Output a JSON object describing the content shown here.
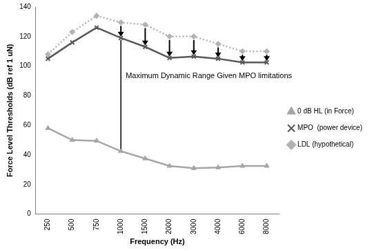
{
  "chart_data": {
    "type": "line",
    "categories": [
      "250",
      "500",
      "750",
      "1000",
      "1500",
      "2000",
      "3000",
      "4000",
      "6000",
      "8000"
    ],
    "series": [
      {
        "name": "0 dB HL (in Force)",
        "color": "#a6a6a6",
        "marker": "triangle",
        "line_style": "solid",
        "values": [
          58,
          50,
          49.5,
          42.5,
          37.5,
          32.5,
          31,
          31.5,
          32.5,
          32.5
        ]
      },
      {
        "name": "MPO  (power device)",
        "color": "#595959",
        "marker": "x",
        "line_style": "solid",
        "values": [
          105,
          116,
          126,
          119,
          113,
          105.5,
          106.5,
          105,
          102.5,
          102.5
        ]
      },
      {
        "name": "LDL (hypothetical)",
        "color": "#b3b3b3",
        "marker": "diamond",
        "line_style": "dotted",
        "values": [
          108,
          123,
          134,
          129.5,
          128,
          120,
          120,
          115,
          110,
          110
        ]
      }
    ],
    "xlabel": "Frequency (Hz)",
    "ylabel": "Force Level Thresholds (dB ref 1 uN)",
    "ylim": [
      0,
      140
    ],
    "yticks": [
      0,
      20,
      40,
      60,
      80,
      100,
      120,
      140
    ],
    "grid": false,
    "legend": "right",
    "annotation": {
      "text": "Maximum Dynamic Range Given MPO limitations",
      "category": "1000"
    }
  }
}
